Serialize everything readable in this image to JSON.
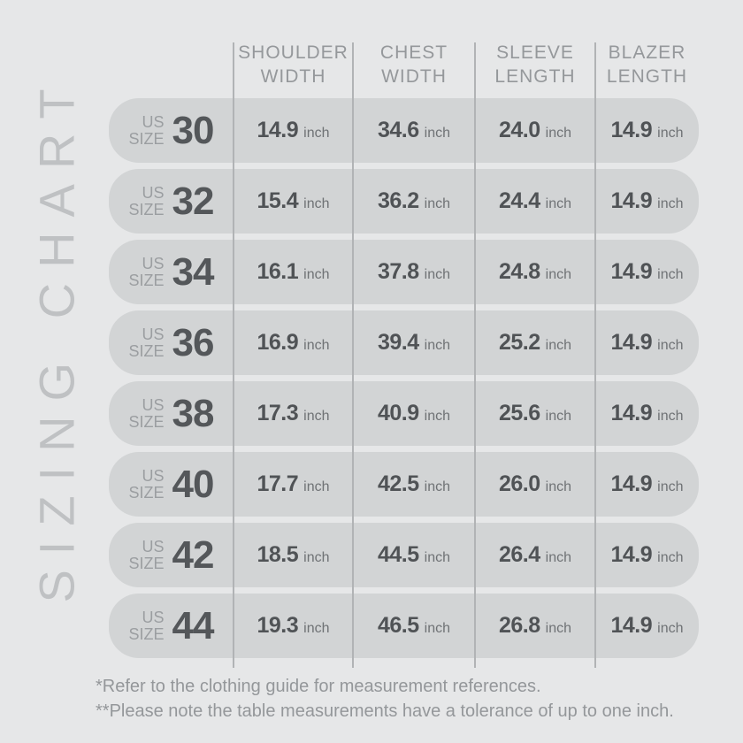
{
  "title": {
    "text": "SIZING CHART"
  },
  "chart_data": {
    "type": "table",
    "title": "SIZING CHART",
    "unit": "inch",
    "row_label_prefix": {
      "line1": "US",
      "line2": "SIZE"
    },
    "columns": [
      {
        "line1": "SHOULDER",
        "line2": "WIDTH"
      },
      {
        "line1": "CHEST",
        "line2": "WIDTH"
      },
      {
        "line1": "SLEEVE",
        "line2": "LENGTH"
      },
      {
        "line1": "BLAZER",
        "line2": "LENGTH"
      }
    ],
    "rows": [
      {
        "size": "30",
        "shoulder_width": "14.9",
        "chest_width": "34.6",
        "sleeve_length": "24.0",
        "blazer_length": "14.9"
      },
      {
        "size": "32",
        "shoulder_width": "15.4",
        "chest_width": "36.2",
        "sleeve_length": "24.4",
        "blazer_length": "14.9"
      },
      {
        "size": "34",
        "shoulder_width": "16.1",
        "chest_width": "37.8",
        "sleeve_length": "24.8",
        "blazer_length": "14.9"
      },
      {
        "size": "36",
        "shoulder_width": "16.9",
        "chest_width": "39.4",
        "sleeve_length": "25.2",
        "blazer_length": "14.9"
      },
      {
        "size": "38",
        "shoulder_width": "17.3",
        "chest_width": "40.9",
        "sleeve_length": "25.6",
        "blazer_length": "14.9"
      },
      {
        "size": "40",
        "shoulder_width": "17.7",
        "chest_width": "42.5",
        "sleeve_length": "26.0",
        "blazer_length": "14.9"
      },
      {
        "size": "42",
        "shoulder_width": "18.5",
        "chest_width": "44.5",
        "sleeve_length": "26.4",
        "blazer_length": "14.9"
      },
      {
        "size": "44",
        "shoulder_width": "19.3",
        "chest_width": "46.5",
        "sleeve_length": "26.8",
        "blazer_length": "14.9"
      }
    ],
    "footnotes": [
      "*Refer to the clothing guide for measurement references.",
      "**Please note the table measurements have a tolerance of up to one inch."
    ]
  },
  "colors": {
    "background": "#e6e7e8",
    "row_pill": "#d2d4d5",
    "divider": "#b1b3b5",
    "value_text": "#505356",
    "unit_text": "#6f7275",
    "header_text": "#95989b",
    "label_text": "#9b9ea1",
    "size_text": "#54575a",
    "title_text": "#bfc1c3",
    "footnote_text": "#94979a"
  }
}
